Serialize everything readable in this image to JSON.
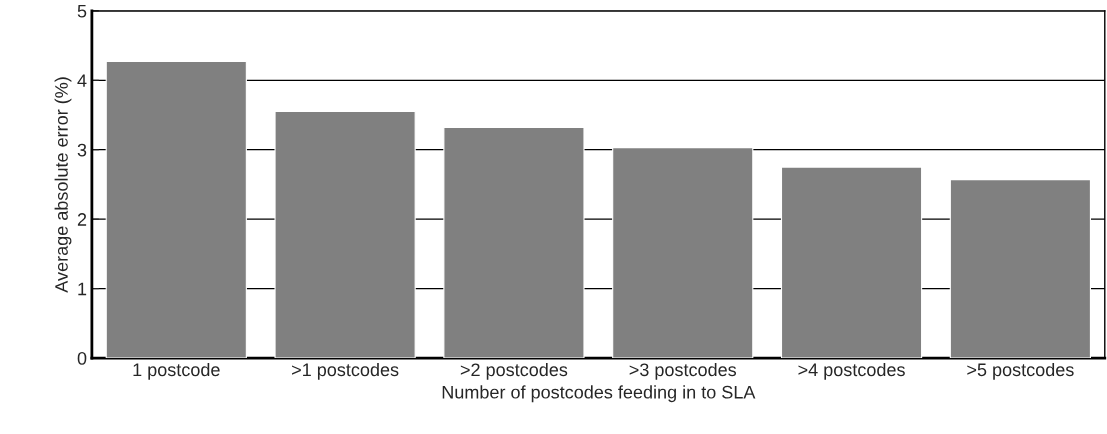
{
  "chart_data": {
    "type": "bar",
    "categories": [
      "1 postcode",
      ">1 postcodes",
      ">2 postcodes",
      ">3 postcodes",
      ">4 postcodes",
      ">5 postcodes"
    ],
    "values": [
      4.27,
      3.55,
      3.32,
      3.03,
      2.75,
      2.57
    ],
    "color": "#808080",
    "xlabel": "Number of postcodes feeding in to SLA",
    "ylabel": "Average absolute error (%)",
    "ylim": [
      0,
      5
    ],
    "yticks": [
      0,
      1,
      2,
      3,
      4,
      5
    ],
    "grid": "y"
  }
}
